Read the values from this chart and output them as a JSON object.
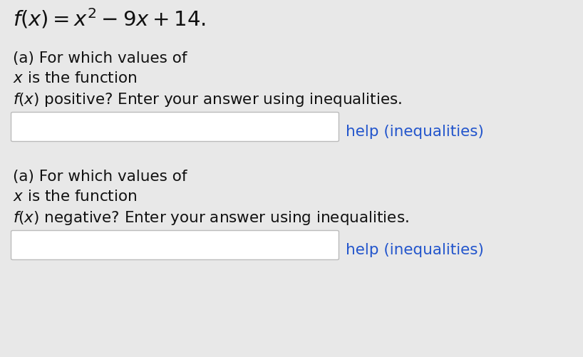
{
  "background_color": "#e8e8e8",
  "title_math": "$f(x) = x^2 - 9x + 14.$",
  "title_fontsize": 21,
  "block1_line1": "(a) For which values of",
  "block1_line2": "$x$ is the function",
  "block1_line3": "$f(x)$ positive? Enter your answer using inequalities.",
  "block2_line1": "(a) For which values of",
  "block2_line2": "$x$ is the function",
  "block2_line3": "$f(x)$ negative? Enter your answer using inequalities.",
  "help_text": "help (inequalities)",
  "help_color": "#2255cc",
  "text_color": "#111111",
  "text_fontsize": 15.5,
  "box_facecolor": "#ffffff",
  "box_edgecolor": "#bbbbbb",
  "fig_width": 8.18,
  "fig_height": 5.02,
  "dpi": 100
}
